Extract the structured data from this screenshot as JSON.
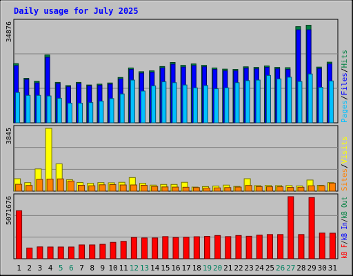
{
  "chart_data": {
    "type": "bar",
    "title": "Daily usage for July 2025",
    "categories": [
      "1",
      "2",
      "3",
      "4",
      "5",
      "6",
      "7",
      "8",
      "9",
      "10",
      "11",
      "12",
      "13",
      "14",
      "15",
      "16",
      "17",
      "18",
      "19",
      "20",
      "21",
      "22",
      "23",
      "24",
      "25",
      "26",
      "27",
      "28",
      "29",
      "30",
      "31"
    ],
    "weekend_days": [
      "5",
      "6",
      "12",
      "13",
      "19",
      "20",
      "26",
      "27"
    ],
    "panels": [
      {
        "name": "hits-files-pages",
        "max_label": "34876",
        "ymax": 34876,
        "side_labels": [
          {
            "text": "Pages",
            "color": "#00C0FF"
          },
          {
            "text": "/",
            "color": "#000000"
          },
          {
            "text": "Files",
            "color": "#0000FF"
          },
          {
            "text": "/",
            "color": "#000000"
          },
          {
            "text": "Hits",
            "color": "#008040"
          }
        ],
        "series": [
          {
            "name": "Hits",
            "color": "#008040",
            "values": [
              20500,
              15400,
              14400,
              23500,
              14000,
              12900,
              14000,
              13100,
              13400,
              13800,
              15700,
              19000,
              17700,
              18000,
              19500,
              20900,
              19900,
              20400,
              19900,
              19000,
              18600,
              18500,
              19400,
              19200,
              19700,
              19200,
              19100,
              33300,
              33800,
              19300,
              21000
            ]
          },
          {
            "name": "Files",
            "color": "#0000FF",
            "values": [
              19800,
              15000,
              13800,
              22700,
              13600,
              12500,
              13600,
              12800,
              13000,
              13400,
              15200,
              18500,
              17200,
              17500,
              19000,
              20300,
              19300,
              19800,
              19400,
              18500,
              18000,
              18000,
              18900,
              18700,
              19200,
              18700,
              18500,
              32200,
              32200,
              18800,
              20400
            ]
          },
          {
            "name": "Pages",
            "color": "#00C0FF",
            "values": [
              10500,
              9500,
              9500,
              9300,
              8500,
              6800,
              6800,
              7000,
              7500,
              8400,
              10000,
              14800,
              11000,
              12800,
              14200,
              13900,
              13100,
              12100,
              12900,
              11800,
              12100,
              13900,
              14600,
              14800,
              16400,
              15200,
              15800,
              14300,
              16900,
              12300,
              14500
            ]
          }
        ]
      },
      {
        "name": "visits-sites",
        "max_label": "3845",
        "ymax": 3845,
        "side_labels": [
          {
            "text": "Sites",
            "color": "#FF8000"
          },
          {
            "text": "/",
            "color": "#000000"
          },
          {
            "text": "Visits",
            "color": "#FFFF00"
          }
        ],
        "series": [
          {
            "name": "Visits",
            "color": "#FFFF00",
            "values": [
              760,
              520,
              1360,
              3845,
              1670,
              700,
              530,
              480,
              520,
              510,
              540,
              830,
              480,
              370,
              410,
              410,
              540,
              250,
              280,
              310,
              370,
              290,
              760,
              340,
              350,
              340,
              340,
              320,
              680,
              360,
              520
            ]
          },
          {
            "name": "Sites",
            "color": "#FF8000",
            "values": [
              420,
              350,
              720,
              740,
              750,
              620,
              360,
              330,
              390,
              400,
              380,
              380,
              360,
              290,
              260,
              250,
              240,
              220,
              190,
              200,
              220,
              250,
              350,
              280,
              270,
              270,
              230,
              240,
              330,
              330,
              490
            ]
          }
        ]
      },
      {
        "name": "kb-traffic",
        "max_label": "5071676",
        "ymax": 5071676,
        "side_labels": [
          {
            "text": "kB F",
            "color": "#FF0000"
          },
          {
            "text": "/",
            "color": "#000000"
          },
          {
            "text": "kB In",
            "color": "#0000FF"
          },
          {
            "text": "/",
            "color": "#000000"
          },
          {
            "text": "kB Out",
            "color": "#008040"
          }
        ],
        "series": [
          {
            "name": "kB F",
            "color": "#FF0000",
            "values": [
              3920000,
              880000,
              970000,
              960000,
              960000,
              960000,
              1130000,
              1130000,
              1180000,
              1340000,
              1420000,
              1740000,
              1700000,
              1700000,
              1810000,
              1740000,
              1760000,
              1800000,
              1830000,
              1900000,
              1810000,
              1900000,
              1840000,
              1930000,
              1980000,
              1980000,
              5071676,
              1980000,
              5000000,
              2100000,
              2090000
            ]
          }
        ]
      }
    ]
  }
}
